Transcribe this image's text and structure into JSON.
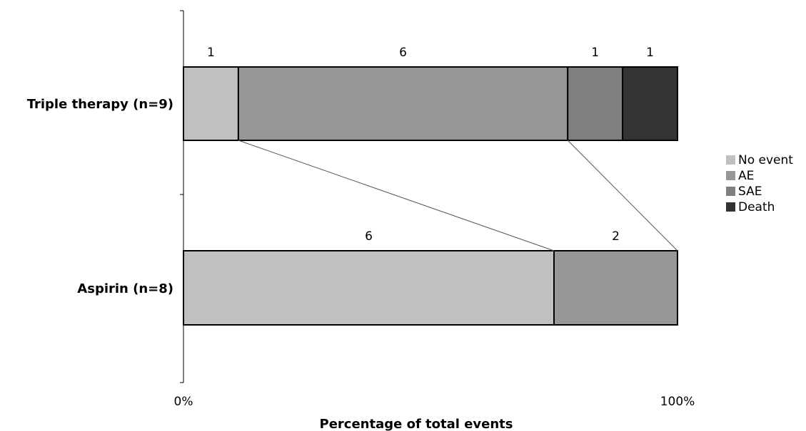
{
  "chart_data": {
    "type": "bar",
    "stacked": "percent",
    "orientation": "horizontal",
    "categories": [
      "Triple therapy (n=9)",
      "Aspirin (n=8)"
    ],
    "series": [
      {
        "name": "No event",
        "values": [
          1,
          6
        ],
        "color": "#c0c0c0"
      },
      {
        "name": "AE",
        "values": [
          6,
          2
        ],
        "color": "#979797"
      },
      {
        "name": "SAE",
        "values": [
          1,
          0
        ],
        "color": "#7f7f7f"
      },
      {
        "name": "Death",
        "values": [
          1,
          0
        ],
        "color": "#333333"
      }
    ],
    "data_labels": [
      [
        "1",
        "6",
        "1",
        "1"
      ],
      [
        "6",
        "2"
      ]
    ],
    "xlabel": "Percentage of total events",
    "ylabel": "",
    "xlim": [
      0,
      100
    ],
    "x_tick_labels": [
      "0%",
      "100%"
    ],
    "legend": "right",
    "grid": false
  }
}
